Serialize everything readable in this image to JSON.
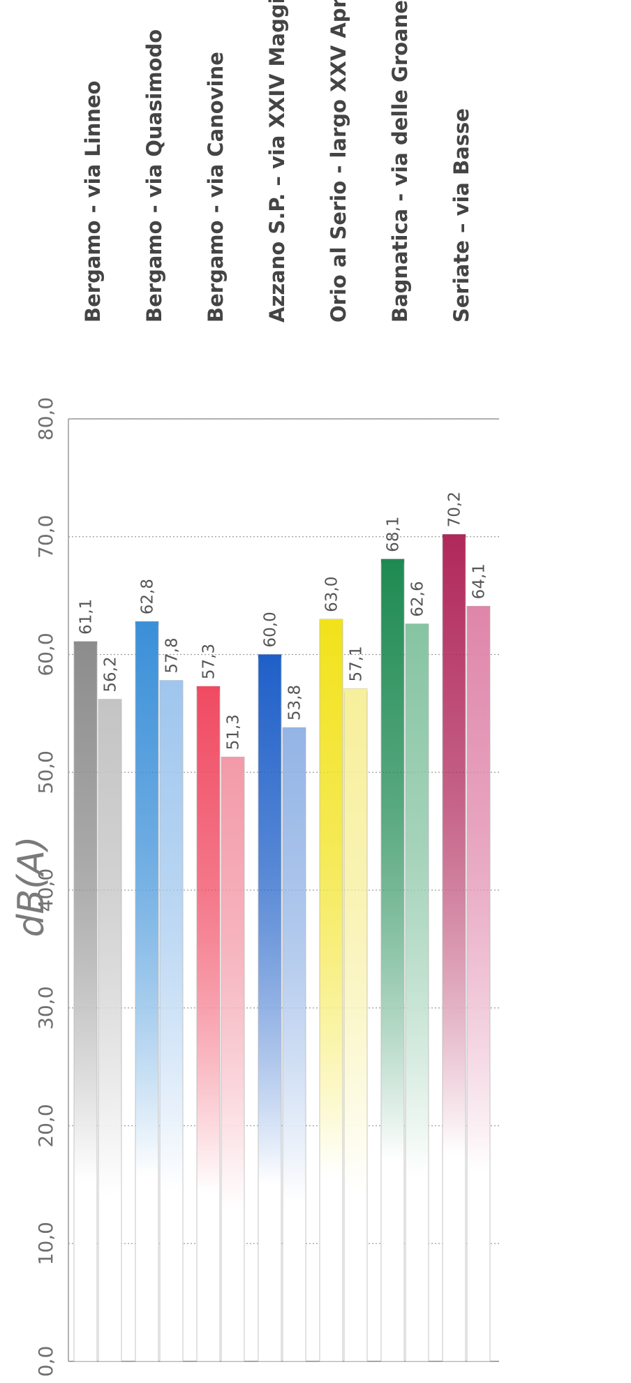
{
  "chart_data": {
    "type": "bar",
    "orientation": "horizontal",
    "unit_label": "dB(A)",
    "xlim": [
      0,
      80
    ],
    "ticks": [
      "0,0",
      "10,0",
      "20,0",
      "30,0",
      "40,0",
      "50,0",
      "60,0",
      "70,0",
      "80,0"
    ],
    "grid": true,
    "categories": [
      "Bergamo - via Linneo",
      "Bergamo - via Quasimodo",
      "Bergamo - via Canovine",
      "Azzano S.P. – via XXIV Maggio",
      "Orio al Serio - largo XXV Aprile",
      "Bagnatica - via delle Groane",
      "Seriate – via Basse"
    ],
    "series": [
      {
        "values": [
          61.1,
          62.8,
          57.3,
          60.0,
          63.0,
          68.1,
          70.2
        ]
      },
      {
        "values": [
          56.2,
          57.8,
          51.3,
          53.8,
          57.1,
          62.6,
          64.1
        ]
      }
    ],
    "value_labels": [
      [
        "61,1",
        "62,8",
        "57,3",
        "60,0",
        "63,0",
        "68,1",
        "70,2"
      ],
      [
        "56,2",
        "57,8",
        "51,3",
        "53,8",
        "57,1",
        "62,6",
        "64,1"
      ]
    ],
    "colors": [
      [
        "#8c8c8c",
        "#3a8fd8",
        "#f04a62",
        "#1e5fc8",
        "#f2e21a",
        "#1e8a52",
        "#b0285a"
      ],
      [
        "#c4c4c4",
        "#9fc6ee",
        "#f39aa8",
        "#93b4e6",
        "#f7ef9a",
        "#86c4a2",
        "#df86aa"
      ]
    ]
  }
}
